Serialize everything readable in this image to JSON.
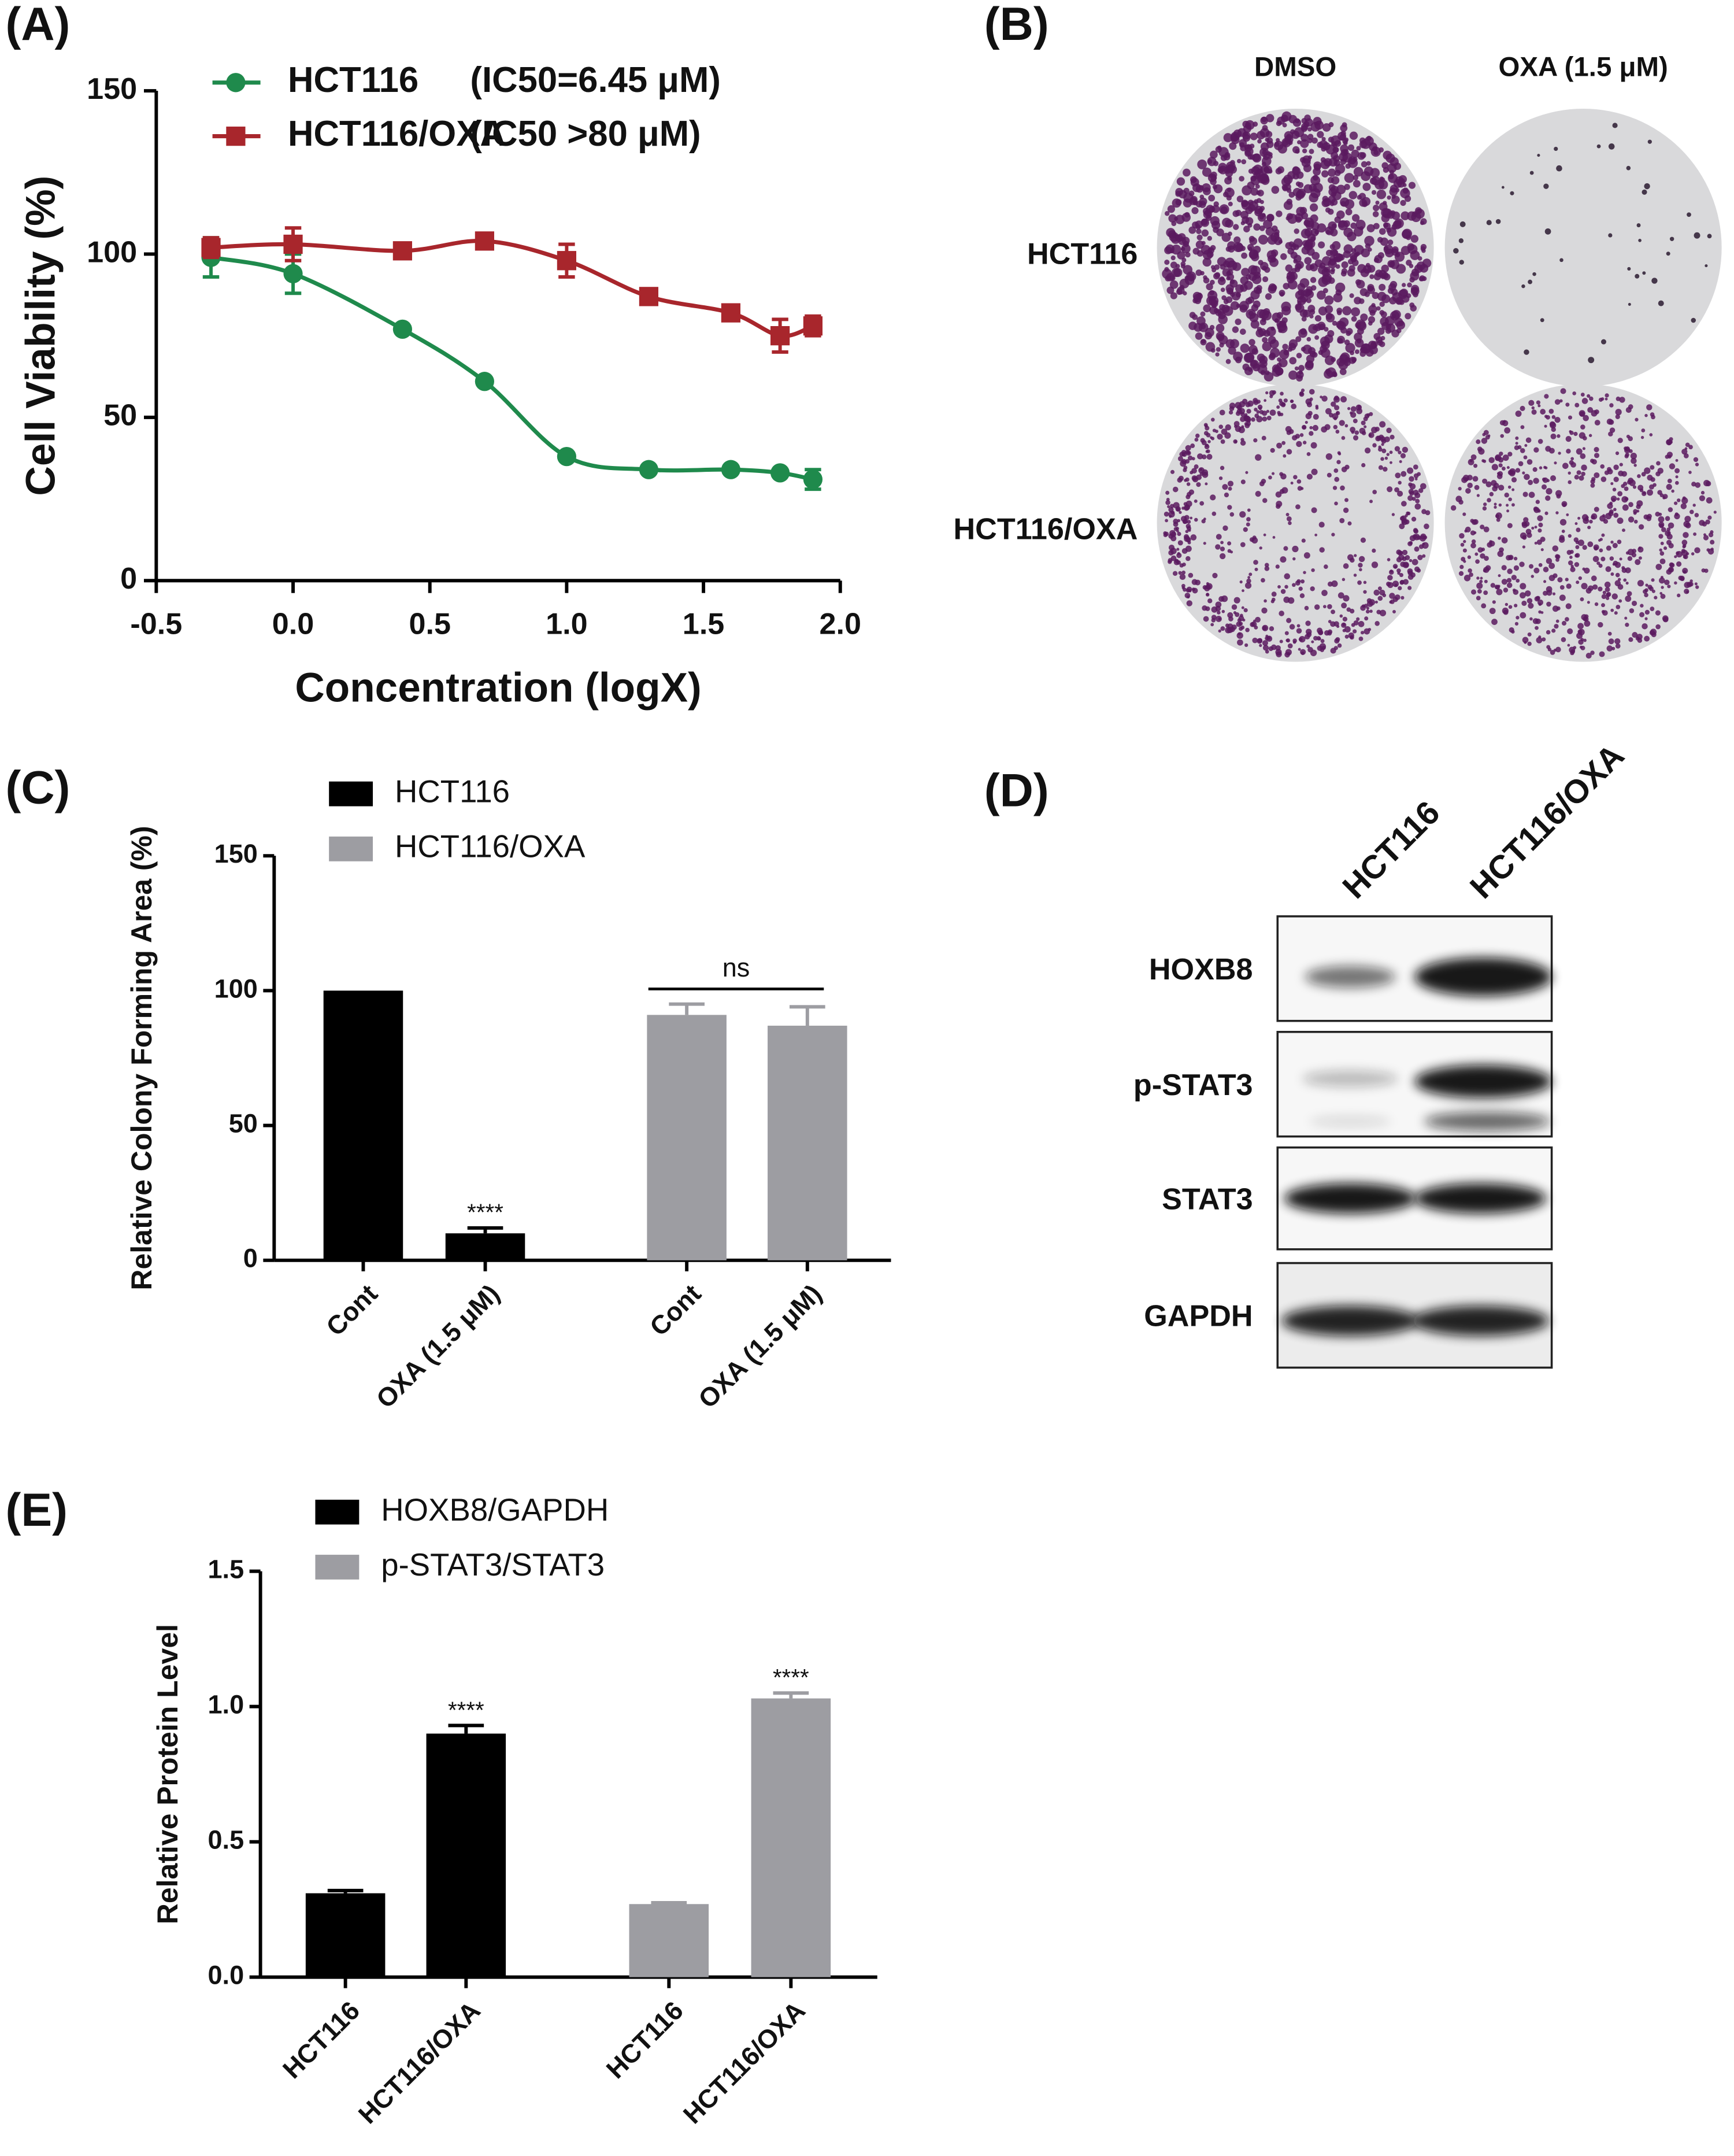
{
  "chart_data": [
    {
      "type": "line",
      "panel": "(A)",
      "xlabel": "Concentration (logX)",
      "ylabel": "Cell Viability (%)",
      "xlim": [
        -0.5,
        2.0
      ],
      "ylim": [
        0,
        150
      ],
      "xticks": [
        -0.5,
        {
          "value": 0,
          "label": "0.0"
        },
        0.5,
        {
          "value": 1,
          "label": "1.0"
        },
        1.5,
        {
          "value": 2,
          "label": "2.0"
        }
      ],
      "yticks": [
        0,
        50,
        100,
        150
      ],
      "x": [
        -0.3,
        0,
        0.4,
        0.7,
        1.0,
        1.3,
        1.6,
        1.78,
        1.9
      ],
      "series": [
        {
          "name": "HCT116",
          "note": "(IC50=6.45 μM)",
          "color": "#1f8a4c",
          "marker": "circle",
          "values": [
            99,
            94,
            77,
            61,
            38,
            34,
            34,
            33,
            31
          ],
          "errors": [
            6,
            6,
            0,
            0,
            0,
            0,
            0,
            0,
            3
          ]
        },
        {
          "name": "HCT116/OXA",
          "note": "(IC50 >80 μM)",
          "color": "#a8262c",
          "marker": "square",
          "values": [
            102,
            103,
            101,
            104,
            98,
            87,
            82,
            75,
            78
          ],
          "errors": [
            3,
            5,
            0,
            0,
            5,
            0,
            0,
            5,
            3
          ]
        }
      ]
    },
    {
      "type": "bar",
      "panel": "(C)",
      "ylabel": "Relative Colony Forming Area (%)",
      "ylim": [
        0,
        150
      ],
      "yticks": [
        0,
        50,
        100,
        150
      ],
      "categories": [
        "Cont",
        "OXA (1.5 μM)",
        "Cont",
        "OXA (1.5 μM)"
      ],
      "series": [
        {
          "name": "HCT116",
          "color": "#000000",
          "values": [
            100,
            10,
            null,
            null
          ],
          "errors": [
            0,
            2,
            null,
            null
          ]
        },
        {
          "name": "HCT116/OXA",
          "color": "#9d9da2",
          "values": [
            null,
            null,
            91,
            87
          ],
          "errors": [
            null,
            null,
            4,
            7
          ]
        }
      ],
      "stars": [
        null,
        "****",
        null,
        null
      ],
      "bracket": {
        "text": "ns",
        "from": 2,
        "to": 3
      }
    },
    {
      "type": "bar",
      "panel": "(E)",
      "ylabel": "Relative Protein Level",
      "ylim": [
        0,
        1.5
      ],
      "yticks": [
        {
          "value": 0,
          "label": "0.0"
        },
        0.5,
        {
          "value": 1,
          "label": "1.0"
        },
        1.5
      ],
      "categories": [
        "HCT116",
        "HCT116/OXA",
        "HCT116",
        "HCT116/OXA"
      ],
      "series": [
        {
          "name": "HOXB8/GAPDH",
          "color": "#000000",
          "values": [
            0.31,
            0.9,
            null,
            null
          ],
          "errors": [
            0.01,
            0.03,
            null,
            null
          ]
        },
        {
          "name": "p-STAT3/STAT3",
          "color": "#9d9da2",
          "values": [
            null,
            null,
            0.27,
            1.03
          ],
          "errors": [
            null,
            null,
            0.005,
            0.02
          ]
        }
      ],
      "stars": [
        null,
        "****",
        null,
        "****"
      ]
    }
  ],
  "colony_assay": {
    "panel": "(B)",
    "columns": [
      "DMSO",
      "OXA (1.5 μM)"
    ],
    "rows": [
      "HCT116",
      "HCT116/OXA"
    ]
  },
  "western_blot": {
    "panel": "(D)",
    "columns": [
      "HCT116",
      "HCT116/OXA"
    ],
    "rows": [
      "HOXB8",
      "p-STAT3",
      "STAT3",
      "GAPDH"
    ]
  }
}
